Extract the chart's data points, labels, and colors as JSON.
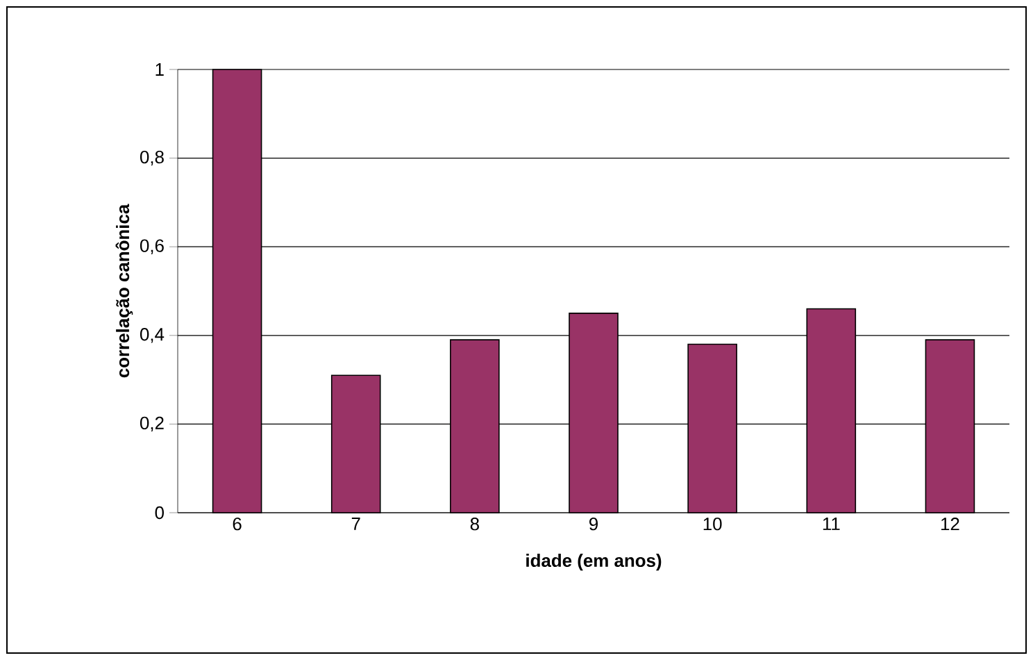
{
  "chart_data": {
    "type": "bar",
    "xlabel": "idade (em anos)",
    "ylabel": "correlação canônica",
    "categories": [
      "6",
      "7",
      "8",
      "9",
      "10",
      "11",
      "12"
    ],
    "values": [
      1.0,
      0.31,
      0.39,
      0.45,
      0.38,
      0.46,
      0.39
    ],
    "color": "#993366",
    "ylim": [
      0,
      1
    ],
    "yticks": [
      0,
      {
        "value": 0.2,
        "label": "0,2"
      },
      {
        "value": 0.4,
        "label": "0,4"
      },
      {
        "value": 0.6,
        "label": "0,6"
      },
      {
        "value": 0.8,
        "label": "0,8"
      },
      1
    ],
    "grid": "y"
  }
}
